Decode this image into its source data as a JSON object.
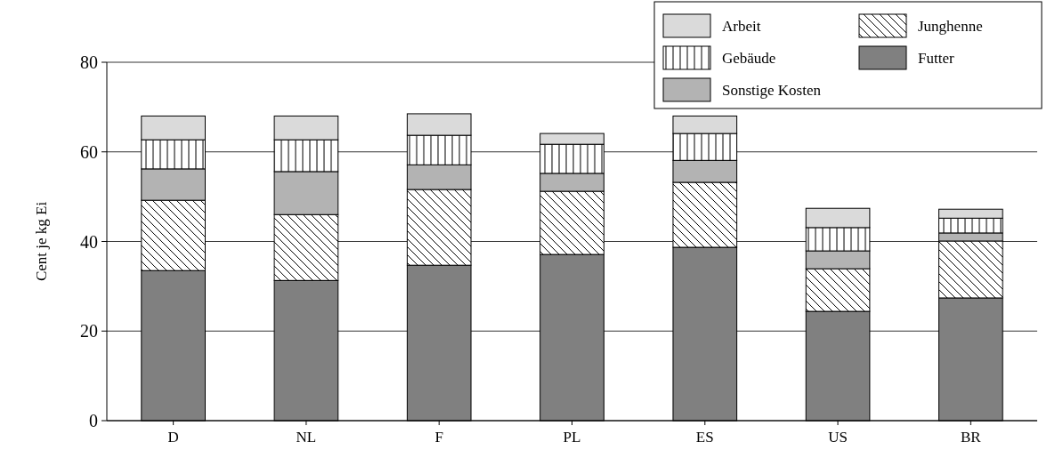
{
  "chart_data": {
    "type": "bar",
    "stacked": true,
    "ylabel": "Cent je kg Ei",
    "categories": [
      "D",
      "NL",
      "F",
      "PL",
      "ES",
      "US",
      "BR"
    ],
    "series": [
      {
        "name": "Futter",
        "color": "#808080",
        "values": [
          33.5,
          31.3,
          34.7,
          37.1,
          38.7,
          24.4,
          27.4
        ]
      },
      {
        "name": "Junghenne",
        "color": "#000000",
        "values": [
          15.7,
          14.7,
          16.9,
          14.1,
          14.5,
          9.5,
          12.7
        ]
      },
      {
        "name": "Sonstige Kosten",
        "color": "#b3b3b3",
        "values": [
          7,
          9.6,
          5.5,
          4,
          4.9,
          4,
          1.8
        ]
      },
      {
        "name": "Gebäude",
        "color": "#000000",
        "values": [
          6.5,
          7.1,
          6.6,
          6.5,
          6,
          5.2,
          3.3
        ]
      },
      {
        "name": "Arbeit",
        "color": "#dadada",
        "values": [
          5.3,
          5.3,
          4.8,
          2.4,
          3.9,
          4.3,
          2
        ]
      }
    ],
    "ylim": [
      0,
      80
    ],
    "yticks": [
      0,
      20,
      40,
      60,
      80
    ],
    "grid": "y",
    "legend": "top right"
  }
}
